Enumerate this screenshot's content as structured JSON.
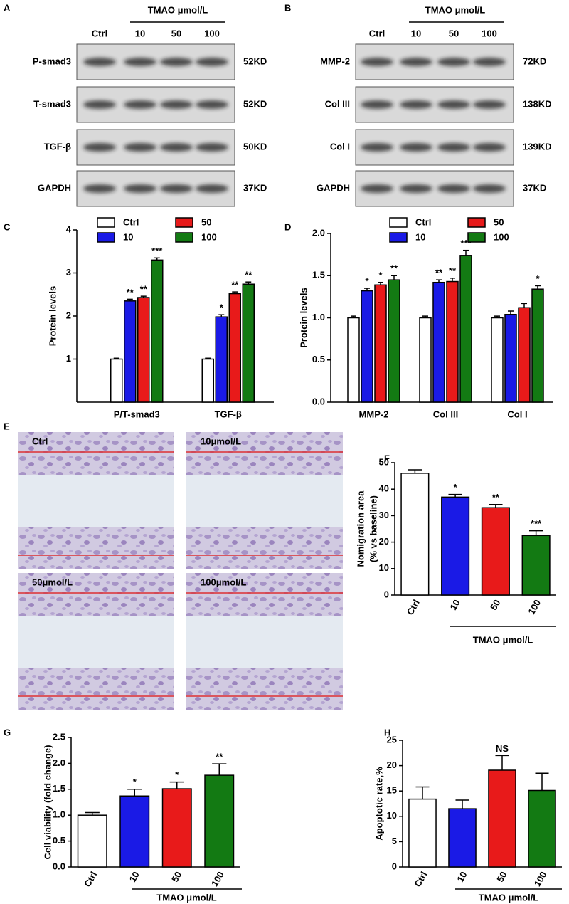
{
  "blots": [
    {
      "panel": "A",
      "header": "TMAO μmol/L",
      "lanes": [
        "Ctrl",
        "10",
        "50",
        "100"
      ],
      "rows": [
        {
          "label": "P-smad3",
          "size": "52KD"
        },
        {
          "label": "T-smad3",
          "size": "52KD"
        },
        {
          "label": "TGF-β",
          "size": "50KD"
        },
        {
          "label": "GAPDH",
          "size": "37KD"
        }
      ]
    },
    {
      "panel": "B",
      "header": "TMAO μmol/L",
      "lanes": [
        "Ctrl",
        "10",
        "50",
        "100"
      ],
      "rows": [
        {
          "label": "MMP-2",
          "size": "72KD"
        },
        {
          "label": "Col III",
          "size": "138KD"
        },
        {
          "label": "Col I",
          "size": "139KD"
        },
        {
          "label": "GAPDH",
          "size": "37KD"
        }
      ]
    }
  ],
  "micrographs": {
    "panel": "E",
    "labels": [
      "Ctrl",
      "10μmol/L",
      "50μmol/L",
      "100μmol/L"
    ]
  },
  "chart_data": [
    {
      "type": "bar",
      "panel": "C",
      "ylabel": "Protein levels",
      "categories": [
        "P/T-smad3",
        "TGF-β"
      ],
      "series": [
        {
          "name": "Ctrl",
          "color": "#ffffff",
          "values": [
            1,
            1
          ],
          "errors": [
            0.02,
            0.02
          ],
          "annotations": [
            null,
            null
          ]
        },
        {
          "name": "10",
          "color": "#1a1ae6",
          "values": [
            2.35,
            1.98
          ],
          "errors": [
            0.04,
            0.05
          ],
          "annotations": [
            "**",
            "*"
          ]
        },
        {
          "name": "50",
          "color": "#e81a1a",
          "values": [
            2.43,
            2.52
          ],
          "errors": [
            0.03,
            0.04
          ],
          "annotations": [
            "**",
            "**"
          ]
        },
        {
          "name": "100",
          "color": "#137a13",
          "values": [
            3.3,
            2.74
          ],
          "errors": [
            0.05,
            0.05
          ],
          "annotations": [
            "***",
            "**"
          ]
        }
      ],
      "ylim": [
        0,
        4
      ],
      "yticks": [
        1,
        2,
        3,
        4
      ]
    },
    {
      "type": "bar",
      "panel": "D",
      "ylabel": "Protein levels",
      "categories": [
        "MMP-2",
        "Col III",
        "Col I"
      ],
      "series": [
        {
          "name": "Ctrl",
          "color": "#ffffff",
          "values": [
            1,
            1,
            1
          ],
          "errors": [
            0.02,
            0.02,
            0.02
          ],
          "annotations": [
            null,
            null,
            null
          ]
        },
        {
          "name": "10",
          "color": "#1a1ae6",
          "values": [
            1.32,
            1.42,
            1.04
          ],
          "errors": [
            0.03,
            0.03,
            0.04
          ],
          "annotations": [
            "*",
            "**",
            null
          ]
        },
        {
          "name": "50",
          "color": "#e81a1a",
          "values": [
            1.39,
            1.43,
            1.12
          ],
          "errors": [
            0.03,
            0.04,
            0.05
          ],
          "annotations": [
            "*",
            "**",
            null
          ]
        },
        {
          "name": "100",
          "color": "#137a13",
          "values": [
            1.45,
            1.74,
            1.34
          ],
          "errors": [
            0.05,
            0.06,
            0.04
          ],
          "annotations": [
            "**",
            "***",
            "*"
          ]
        }
      ],
      "ylim": [
        0,
        2
      ],
      "yticks": [
        {
          "value": 0,
          "label": "0.0"
        },
        {
          "value": 0.5,
          "label": "0.5"
        },
        {
          "value": 1,
          "label": "1.0"
        },
        {
          "value": 1.5,
          "label": "1.5"
        },
        {
          "value": 2,
          "label": "2.0"
        }
      ]
    },
    {
      "type": "bar",
      "panel": "F",
      "ylabel": [
        "Nomigration area",
        "(% vs baseline)"
      ],
      "xlabel": "TMAO μmol/L",
      "categories": [
        "Ctrl",
        "10",
        "50",
        "100"
      ],
      "values": [
        46,
        37,
        33,
        22.5
      ],
      "errors": [
        1.3,
        1,
        1.2,
        1.8
      ],
      "annotations": [
        null,
        "*",
        "**",
        "***"
      ],
      "colors": [
        "#ffffff",
        "#1a1ae6",
        "#e81a1a",
        "#137a13"
      ],
      "ylim": [
        0,
        50
      ],
      "yticks": [
        0,
        10,
        20,
        30,
        40,
        50
      ]
    },
    {
      "type": "bar",
      "panel": "G",
      "ylabel": "Cell viability (fold change)",
      "xlabel": "TMAO μmol/L",
      "categories": [
        "Ctrl",
        "10",
        "50",
        "100"
      ],
      "values": [
        1,
        1.37,
        1.51,
        1.77
      ],
      "errors": [
        0.05,
        0.13,
        0.13,
        0.22
      ],
      "annotations": [
        null,
        "*",
        "*",
        "**"
      ],
      "colors": [
        "#ffffff",
        "#1a1ae6",
        "#e81a1a",
        "#137a13"
      ],
      "ylim": [
        0,
        2.5
      ],
      "yticks": [
        {
          "value": 0,
          "label": "0.0"
        },
        {
          "value": 0.5,
          "label": "0.5"
        },
        {
          "value": 1,
          "label": "1.0"
        },
        {
          "value": 1.5,
          "label": "1.5"
        },
        {
          "value": 2,
          "label": "2.0"
        },
        {
          "value": 2.5,
          "label": "2.5"
        }
      ]
    },
    {
      "type": "bar",
      "panel": "H",
      "ylabel": "Apoptotic rate,%",
      "xlabel": "TMAO μmol/L",
      "categories": [
        "Ctrl",
        "10",
        "50",
        "100"
      ],
      "values": [
        13.4,
        11.5,
        19.1,
        15.1
      ],
      "errors": [
        2.4,
        1.7,
        2.9,
        3.4
      ],
      "annotations": [
        null,
        null,
        "NS",
        null
      ],
      "colors": [
        "#ffffff",
        "#1a1ae6",
        "#e81a1a",
        "#137a13"
      ],
      "ylim": [
        0,
        25
      ],
      "yticks": [
        0,
        5,
        10,
        15,
        20,
        25
      ]
    }
  ]
}
